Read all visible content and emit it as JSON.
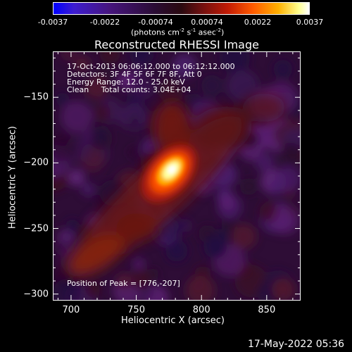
{
  "colorbar": {
    "ticks": [
      "-0.0037",
      "-0.0022",
      "-0.00074",
      "0.00074",
      "0.0022",
      "0.0037"
    ],
    "tick_values": [
      -0.0037,
      -0.0022,
      -0.00074,
      0.00074,
      0.0022,
      0.0037
    ],
    "units_main": "(photons cm",
    "units_sup1": "-2",
    "units_mid": " s",
    "units_sup2": "-1",
    "units_tail": " asec",
    "units_sup3": "-2",
    "units_close": ")",
    "range": [
      -0.0037,
      0.0037
    ]
  },
  "chart_data": {
    "type": "heatmap",
    "title": "Reconstructed RHESSI Image",
    "xlabel": "Heliocentric X (arcsec)",
    "ylabel": "Heliocentric Y (arcsec)",
    "xlim": [
      686,
      876
    ],
    "ylim": [
      -305,
      -115
    ],
    "xticks": [
      700,
      750,
      800,
      850
    ],
    "yticks": [
      -150,
      -200,
      -250,
      -300
    ],
    "peak": [
      776,
      -207
    ],
    "annotations": {
      "line1": "17-Oct-2013 06:06:12.000 to 06:12:12.000",
      "line2": "Detectors: 3F 4F 5F 6F 7F 8F, Att 0",
      "line3": "Energy Range: 12.0 - 25.0 keV",
      "line4": "Clean     Total counts: 3.04E+04",
      "peak_text": "Position of Peak = [776,-207]"
    }
  },
  "footer": {
    "timestamp": "17-May-2022 05:36"
  }
}
